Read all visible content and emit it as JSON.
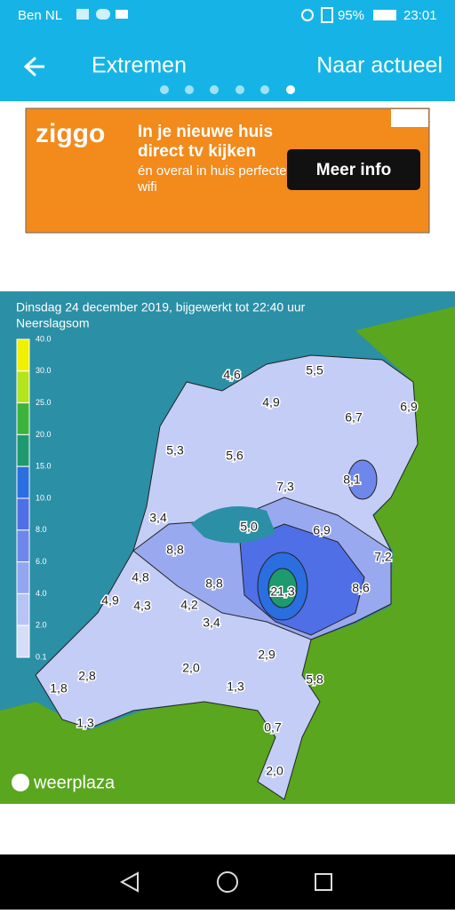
{
  "status_bar": {
    "carrier": "Ben NL",
    "battery": "95%",
    "time": "23:01"
  },
  "app_bar": {
    "title": "Extremen",
    "action": "Naar actueel"
  },
  "ad": {
    "brand": "ziggo",
    "headline": "In je nieuwe huis direct tv kijken",
    "subline": "én overal in huis perfecte wifi",
    "button": "Meer info"
  },
  "map": {
    "title": "Dinsdag 24 december 2019, bijgewerkt tot 22:40 uur",
    "subtitle": "Neerslagsom",
    "legend": {
      "ticks": [
        "40.0",
        "30.0",
        "25.0",
        "20.0",
        "15.0",
        "10.0",
        "8.0",
        "6.0",
        "4.0",
        "2.0",
        "0.1"
      ],
      "colors": [
        "#f0f000",
        "#b4e41e",
        "#3cb43c",
        "#1e9a6e",
        "#2a6ee0",
        "#4f6fe6",
        "#6f87ea",
        "#93a6f0",
        "#b7c4f5",
        "#d6ddf9"
      ]
    },
    "values": [
      "4,6",
      "5,5",
      "4,9",
      "6,7",
      "6,9",
      "5,3",
      "5,6",
      "8,1",
      "7,3",
      "3,4",
      "5,0",
      "6,9",
      "8,8",
      "7,2",
      "4,8",
      "8,8",
      "21,3",
      "8,6",
      "4,9",
      "4,3",
      "4,2",
      "3,4",
      "2,9",
      "2,8",
      "2,0",
      "1,3",
      "5,8",
      "1,8",
      "1,3",
      "0,7",
      "2,0"
    ],
    "brand": "weerplaza"
  }
}
